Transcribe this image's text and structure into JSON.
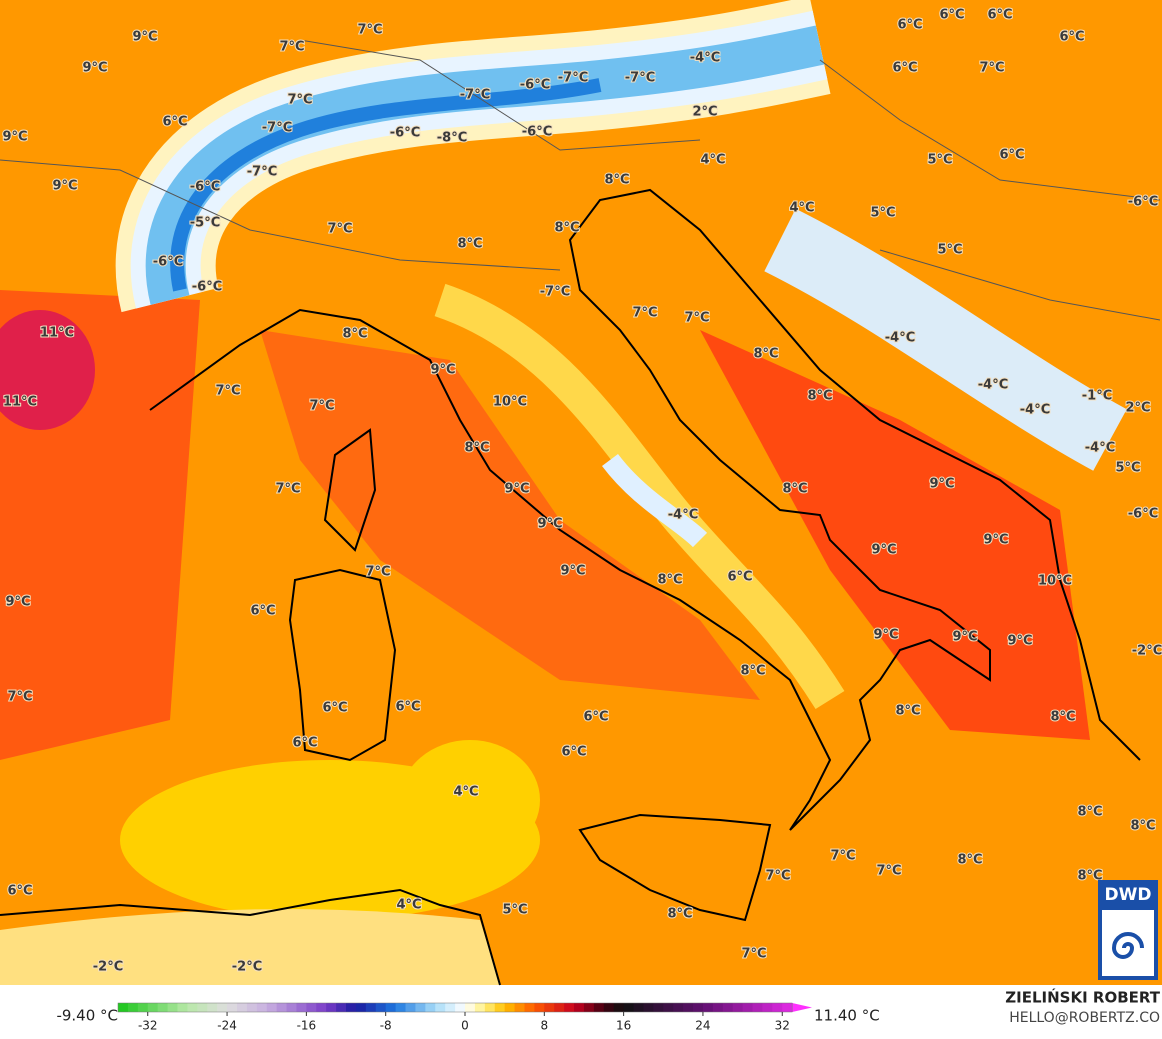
{
  "map": {
    "labels": [
      "9°C",
      "7°C",
      "7°C",
      "9°C",
      "6°C",
      "6°C",
      "6°C",
      "6°C",
      "-4°C",
      "-7°C",
      "-7°C",
      "-6°C",
      "7°C",
      "-7°C",
      "6°C",
      "7°C",
      "2°C",
      "6°C",
      "-7°C",
      "-6°C",
      "-8°C",
      "-6°C",
      "9°C",
      "4°C",
      "5°C",
      "6°C",
      "-7°C",
      "9°C",
      "-6°C",
      "8°C",
      "4°C",
      "5°C",
      "-6°C",
      "-5°C",
      "7°C",
      "8°C",
      "8°C",
      "5°C",
      "-6°C",
      "-6°C",
      "-7°C",
      "7°C",
      "7°C",
      "11°C",
      "8°C",
      "-4°C",
      "8°C",
      "9°C",
      "7°C",
      "-4°C",
      "11°C",
      "7°C",
      "10°C",
      "8°C",
      "-1°C",
      "2°C",
      "-4°C",
      "8°C",
      "-4°C",
      "5°C",
      "7°C",
      "9°C",
      "9°C",
      "8°C",
      "-4°C",
      "9°C",
      "9°C",
      "9°C",
      "-6°C",
      "7°C",
      "9°C",
      "8°C",
      "6°C",
      "10°C",
      "9°C",
      "6°C",
      "9°C",
      "9°C",
      "9°C",
      "-2°C",
      "8°C",
      "7°C",
      "6°C",
      "6°C",
      "8°C",
      "6°C",
      "8°C",
      "6°C",
      "6°C",
      "4°C",
      "8°C",
      "8°C",
      "7°C",
      "8°C",
      "7°C",
      "7°C",
      "8°C",
      "6°C",
      "4°C",
      "5°C",
      "8°C",
      "7°C",
      "-2°C",
      "-2°C"
    ],
    "logo": "DWD"
  },
  "colorbar": {
    "min_label": "-9.40 °C",
    "max_label": "11.40 °C",
    "lim": [
      -35,
      35
    ],
    "ticks": [
      -32,
      -24,
      -16,
      -8,
      0,
      8,
      16,
      24,
      32
    ],
    "color_stops": [
      [
        -35,
        "#19c519"
      ],
      [
        -28,
        "#b8e8a8"
      ],
      [
        -24,
        "#dedede"
      ],
      [
        -20,
        "#c8b0e0"
      ],
      [
        -14,
        "#7a3cc8"
      ],
      [
        -11,
        "#1a1aa0"
      ],
      [
        -7,
        "#1e78e0"
      ],
      [
        -3,
        "#a8dcf8"
      ],
      [
        0,
        "#ffffff"
      ],
      [
        2,
        "#fff080"
      ],
      [
        4,
        "#ffc000"
      ],
      [
        7,
        "#ff5a00"
      ],
      [
        11,
        "#c80020"
      ],
      [
        14,
        "#400010"
      ],
      [
        16,
        "#101010"
      ],
      [
        24,
        "#601070"
      ],
      [
        35,
        "#ff30ff"
      ]
    ]
  },
  "credit": {
    "name": "ZIELIŃSKI ROBERT",
    "email": "HELLO@ROBERTZ.CO"
  }
}
